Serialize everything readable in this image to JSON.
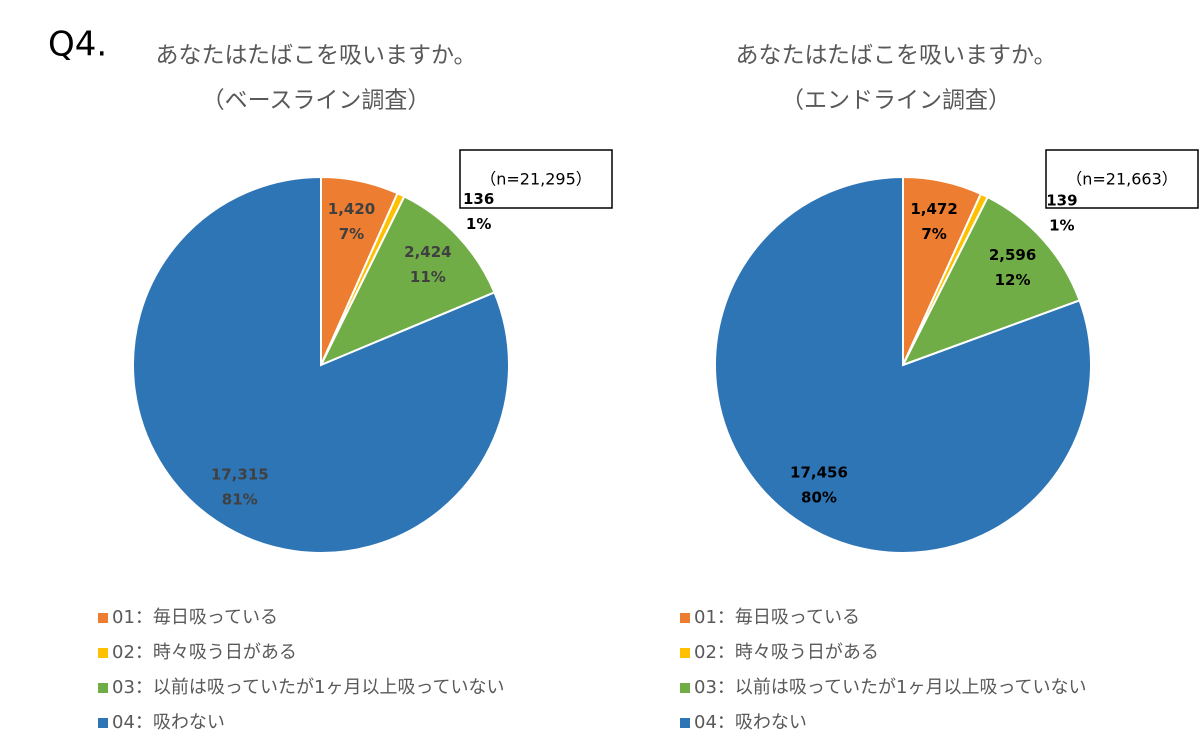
{
  "question": "Q4.",
  "chart_data": [
    {
      "type": "pie",
      "title": "あなたはたばこを吸いますか。",
      "subtitle": "（ベースライン調査）",
      "annotation": "（n=21,295）",
      "categories": [
        "01：毎日吸っている",
        "02：時々吸う日がある",
        "03：以前は吸っていたが1ヶ月以上吸っていない",
        "04：吸わない"
      ],
      "values": [
        1420,
        136,
        2424,
        17315
      ],
      "value_labels": [
        "1,420",
        "136",
        "2,424",
        "17,315"
      ],
      "percentages": [
        7,
        1,
        11,
        81
      ],
      "percentage_labels": [
        "7%",
        "1%",
        "11%",
        "81%"
      ],
      "colors": [
        "#ed7d31",
        "#ffc000",
        "#70ad47",
        "#2e75b6"
      ],
      "label_color": "#404040"
    },
    {
      "type": "pie",
      "title": "あなたはたばこを吸いますか。",
      "subtitle": "（エンドライン調査）",
      "annotation": "（n=21,663）",
      "categories": [
        "01：毎日吸っている",
        "02：時々吸う日がある",
        "03：以前は吸っていたが1ヶ月以上吸っていない",
        "04：吸わない"
      ],
      "values": [
        1472,
        139,
        2596,
        17456
      ],
      "value_labels": [
        "1,472",
        "139",
        "2,596",
        "17,456"
      ],
      "percentages": [
        7,
        1,
        12,
        80
      ],
      "percentage_labels": [
        "7%",
        "1%",
        "12%",
        "80%"
      ],
      "colors": [
        "#ed7d31",
        "#ffc000",
        "#70ad47",
        "#2e75b6"
      ],
      "label_color": "#000000"
    }
  ]
}
